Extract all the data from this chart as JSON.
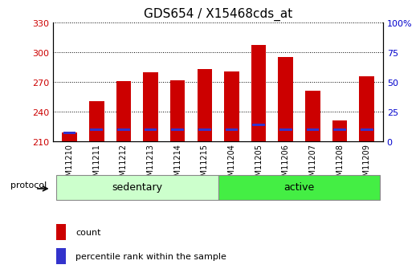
{
  "title": "GDS654 / X15468cds_at",
  "samples": [
    "GSM11210",
    "GSM11211",
    "GSM11212",
    "GSM11213",
    "GSM11214",
    "GSM11215",
    "GSM11204",
    "GSM11205",
    "GSM11206",
    "GSM11207",
    "GSM11208",
    "GSM11209"
  ],
  "count_values": [
    219,
    251,
    271,
    280,
    272,
    283,
    281,
    307,
    295,
    261,
    231,
    276
  ],
  "percentile_values": [
    7,
    10,
    10,
    10,
    10,
    10,
    10,
    14,
    10,
    10,
    10,
    10
  ],
  "ymin": 210,
  "ymax": 330,
  "yticks_left": [
    210,
    240,
    270,
    300,
    330
  ],
  "yticks_right": [
    0,
    25,
    50,
    75,
    100
  ],
  "bar_color": "#cc0000",
  "percentile_color": "#3333cc",
  "sedentary_color": "#ccffcc",
  "active_color": "#44ee44",
  "sedentary_label": "sedentary",
  "active_label": "active",
  "protocol_label": "protocol",
  "legend_count": "count",
  "legend_percentile": "percentile rank within the sample",
  "bar_width": 0.55,
  "background_color": "#ffffff",
  "plot_bg_color": "#ffffff",
  "title_fontsize": 11,
  "axis_label_color_left": "#cc0000",
  "axis_label_color_right": "#0000cc",
  "n_sedentary": 6,
  "n_active": 6
}
